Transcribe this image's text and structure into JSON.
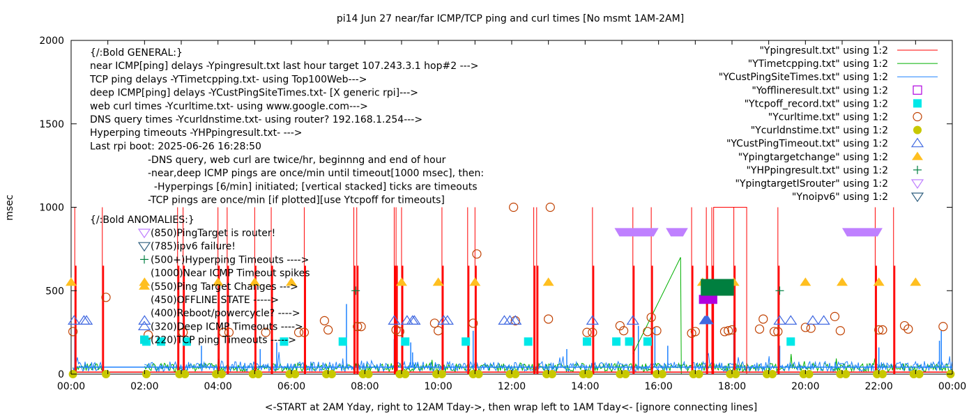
{
  "chart_data": {
    "type": "line",
    "title": "pi14 Jun 27  near/far ICMP/TCP ping and curl times [No msmt 1AM-2AM]",
    "xlabel": "<-START at 2AM Yday, right to 12AM Tday->, then wrap left to 1AM Tday<- [ignore connecting lines]",
    "ylabel": "msec",
    "xlim": [
      0,
      24
    ],
    "ylim": [
      0,
      2000
    ],
    "x_unit": "hours",
    "x_ticks": [
      "00:00",
      "02:00",
      "04:00",
      "06:00",
      "08:00",
      "10:00",
      "12:00",
      "14:00",
      "16:00",
      "18:00",
      "20:00",
      "22:00",
      "00:00"
    ],
    "y_ticks": [
      "0",
      "500",
      "1000",
      "1500",
      "2000"
    ],
    "y_tick_values": [
      0,
      500,
      1000,
      1500,
      2000
    ],
    "grid": false,
    "legend_position": "top-right",
    "annotations": {
      "general": [
        "{/:Bold GENERAL:}",
        "near ICMP[ping] delays -Ypingresult.txt last hour target 107.243.3.1 hop#2 --->",
        "TCP ping delays -YTimetcpping.txt- using Top100Web--->",
        "deep ICMP[ping] delays -YCustPingSiteTimes.txt- [X generic rpi]--->",
        "web curl times -Ycurltime.txt- using www.google.com--->",
        "DNS query times -Ycurldnstime.txt- using router? 192.168.1.254--->",
        "Hyperping timeouts -YHPpingresult.txt- --->",
        "Last rpi boot: 2025-06-26 16:28:50"
      ],
      "notes": [
        "-DNS query, web curl are twice/hr, beginnng and end of hour",
        "-near,deep ICMP pings are once/min until timeout[1000 msec], then:",
        "  -Hyperpings [6/min] initiated; [vertical stacked] ticks are timeouts",
        "-TCP pings are once/min [if plotted][use Ytcpoff for timeouts]"
      ],
      "anomalies_header": "{/:Bold ANOMALIES:}",
      "anomalies": [
        {
          "marker": "tri-down-open",
          "color": "#bf80ff",
          "text": "(850)PingTarget is router!"
        },
        {
          "marker": "tri-down-open",
          "color": "#2f5f7f",
          "text": "(785)ipv6 failure!"
        },
        {
          "marker": "plus",
          "color": "#007f3f",
          "text": "(500+)Hyperping Timeouts ---->"
        },
        {
          "marker": "none",
          "color": "",
          "text": "(1000)Near ICMP Timeout spikes"
        },
        {
          "marker": "tri-up-filled",
          "color": "#ffbf20",
          "text": "(550)Ping Target Changes --->"
        },
        {
          "marker": "none",
          "color": "",
          "text": "(450)OFFLINE STATE ----->"
        },
        {
          "marker": "none",
          "color": "",
          "text": "(400)Reboot/powercycle? ---->"
        },
        {
          "marker": "tri-up-open",
          "color": "#4169e1",
          "text": "(320)Deep ICMP Timeouts ---->"
        },
        {
          "marker": "square-filled",
          "color": "#00e0e0",
          "text": "(220)TCP ping Timeouts ----->"
        }
      ]
    },
    "legend": [
      {
        "label": "\"Ypingresult.txt\" using 1:2",
        "style": "line",
        "color": "#ff0000"
      },
      {
        "label": "\"YTimetcpping.txt\" using 1:2",
        "style": "line",
        "color": "#00b000"
      },
      {
        "label": "\"YCustPingSiteTimes.txt\" using 1:2",
        "style": "line",
        "color": "#1e82ff"
      },
      {
        "label": "\"Yofflineresult.txt\" using 1:2",
        "style": "square-open",
        "color": "#b000e0"
      },
      {
        "label": "\"Ytcpoff_record.txt\" using 1:2",
        "style": "square-filled",
        "color": "#00e8e8"
      },
      {
        "label": "\"Ycurltime.txt\" using 1:2",
        "style": "circle-open",
        "color": "#c04000"
      },
      {
        "label": "\"Ycurldnstime.txt\" using 1:2",
        "style": "circle-filled",
        "color": "#c8c800"
      },
      {
        "label": "\"YCustPingTimeout.txt\" using 1:2",
        "style": "tri-up-open",
        "color": "#4169e1"
      },
      {
        "label": "\"Ypingtargetchange\" using 1:2",
        "style": "tri-up-filled",
        "color": "#ffbf20"
      },
      {
        "label": "\"YHPpingresult.txt\" using 1:2",
        "style": "plus",
        "color": "#007f3f"
      },
      {
        "label": "\"YpingtargetISrouter\" using 1:2",
        "style": "tri-down-open",
        "color": "#bf80ff"
      },
      {
        "label": "\"Ynoipv6\" using 1:2",
        "style": "tri-down-open",
        "color": "#2f5f7f"
      }
    ],
    "series": [
      {
        "name": "Ypingresult.txt",
        "baseline": 12,
        "spikes_x": [
          0.1,
          0.85,
          2.9,
          3.05,
          4.0,
          4.25,
          5.0,
          5.45,
          6.35,
          7.7,
          7.78,
          8.8,
          8.85,
          9.0,
          10.1,
          10.8,
          11.0,
          12.6,
          12.68,
          14.2,
          15.3,
          15.8,
          16.9,
          17.3,
          17.45,
          18.05,
          19.25,
          21.9,
          22.4
        ],
        "spike_value": 1000,
        "sustained": [
          [
            17.5,
            18.4,
            1000
          ]
        ]
      },
      {
        "name": "YTimetcpping.txt",
        "baseline": 40,
        "noise": 25,
        "extra_points": [
          [
            15.3,
            120
          ],
          [
            16.6,
            700
          ],
          [
            16.62,
            0
          ]
        ]
      },
      {
        "name": "YCustPingSiteTimes.txt",
        "baseline": 45,
        "noise": 30,
        "flat": [
          [
            0.1,
            2.0,
            35
          ],
          [
            15.0,
            16.0,
            35
          ],
          [
            16.0,
            24,
            40
          ]
        ],
        "spikes": [
          [
            0.1,
            280
          ],
          [
            3.55,
            170
          ],
          [
            5.15,
            150
          ],
          [
            5.6,
            190
          ],
          [
            7.5,
            420
          ],
          [
            8.8,
            210
          ],
          [
            9.25,
            190
          ],
          [
            9.3,
            130
          ],
          [
            10.95,
            260
          ],
          [
            13.5,
            150
          ],
          [
            15.45,
            290
          ],
          [
            15.9,
            280
          ],
          [
            16.25,
            170
          ],
          [
            18.05,
            320
          ],
          [
            19.3,
            170
          ],
          [
            22.0,
            160
          ],
          [
            23.65,
            200
          ],
          [
            23.7,
            260
          ]
        ]
      },
      {
        "name": "Yofflineresult.txt",
        "rects": [
          [
            17.1,
            17.6,
            450
          ]
        ]
      },
      {
        "name": "Ytcpoff_record.txt",
        "x": [
          2.05,
          2.45,
          3.15,
          5.8,
          7.4,
          9.1,
          10.75,
          12.45,
          14.05,
          14.85,
          15.2,
          15.7,
          19.6
        ],
        "value": 220
      },
      {
        "name": "Ycurltime.txt",
        "points": [
          [
            0.05,
            255
          ],
          [
            0.95,
            460
          ],
          [
            2.1,
            235
          ],
          [
            3.05,
            250
          ],
          [
            4.15,
            250
          ],
          [
            4.3,
            250
          ],
          [
            5.3,
            250
          ],
          [
            6.2,
            250
          ],
          [
            6.35,
            250
          ],
          [
            6.9,
            320
          ],
          [
            7.0,
            265
          ],
          [
            7.8,
            285
          ],
          [
            7.9,
            285
          ],
          [
            8.85,
            265
          ],
          [
            8.95,
            255
          ],
          [
            9.9,
            305
          ],
          [
            10.0,
            260
          ],
          [
            10.95,
            305
          ],
          [
            11.05,
            720
          ],
          [
            12.1,
            320
          ],
          [
            12.05,
            1000
          ],
          [
            13.0,
            330
          ],
          [
            13.05,
            1000
          ],
          [
            14.05,
            250
          ],
          [
            14.2,
            250
          ],
          [
            14.95,
            290
          ],
          [
            15.05,
            260
          ],
          [
            15.7,
            255
          ],
          [
            15.8,
            340
          ],
          [
            15.95,
            260
          ],
          [
            16.9,
            245
          ],
          [
            17.0,
            255
          ],
          [
            17.8,
            255
          ],
          [
            17.9,
            260
          ],
          [
            18.0,
            265
          ],
          [
            18.75,
            270
          ],
          [
            18.85,
            330
          ],
          [
            19.15,
            255
          ],
          [
            19.25,
            255
          ],
          [
            20.0,
            280
          ],
          [
            20.15,
            275
          ],
          [
            20.8,
            345
          ],
          [
            20.95,
            260
          ],
          [
            22.0,
            265
          ],
          [
            22.1,
            265
          ],
          [
            22.7,
            290
          ],
          [
            22.8,
            270
          ],
          [
            23.75,
            285
          ]
        ]
      },
      {
        "name": "Ycurldnstime.txt",
        "x": [
          0.05,
          0.95,
          2.05,
          2.95,
          3.1,
          3.95,
          4.1,
          4.95,
          5.1,
          5.95,
          6.1,
          6.95,
          7.1,
          7.95,
          8.1,
          8.95,
          9.1,
          9.95,
          10.1,
          10.95,
          11.1,
          11.95,
          12.1,
          12.95,
          13.1,
          13.95,
          14.1,
          14.95,
          15.1,
          15.95,
          16.1,
          16.95,
          17.1,
          17.95,
          18.1,
          18.95,
          19.1,
          19.95,
          20.1,
          20.95,
          21.1,
          21.95,
          22.1,
          22.95,
          23.1,
          23.95
        ],
        "value": 0
      },
      {
        "name": "YCustPingTimeout.txt",
        "x": [
          0.08,
          0.35,
          0.42,
          2.0,
          8.8,
          9.15,
          9.3,
          9.35,
          10.15,
          10.25,
          11.8,
          11.95,
          12.1,
          14.2,
          15.3,
          19.3,
          19.6,
          20.2,
          20.5
        ],
        "value": 320,
        "rects": [
          [
            17.1,
            17.5,
            320
          ]
        ]
      },
      {
        "name": "Ypingtargetchange",
        "x": [
          0.0,
          2.0,
          4.0,
          5.0,
          6.0,
          9.0,
          10.0,
          11.0,
          13.0,
          17.2,
          18.05,
          20.0,
          21.0,
          22.0,
          23.0
        ],
        "value": 550
      },
      {
        "name": "YHPpingresult.txt",
        "points": [
          [
            7.75,
            500
          ],
          [
            19.3,
            500
          ]
        ],
        "rects": [
          [
            17.15,
            18.05,
            520
          ]
        ]
      },
      {
        "name": "YpingtargetISrouter",
        "rects": [
          [
            14.8,
            16.0,
            850
          ],
          [
            16.2,
            16.8,
            850
          ],
          [
            21.0,
            22.1,
            850
          ]
        ]
      },
      {
        "name": "Ynoipv6",
        "points": []
      }
    ]
  }
}
